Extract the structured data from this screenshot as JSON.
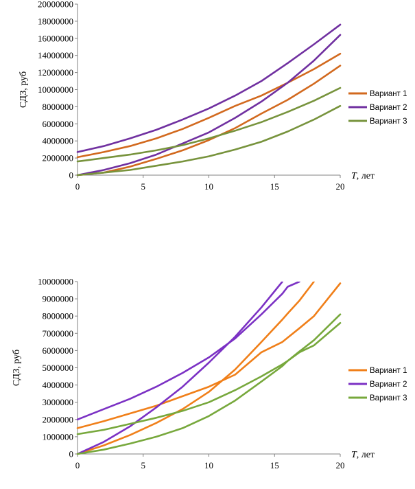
{
  "chart_data": [
    {
      "type": "line",
      "ylabel": "СДЗ, руб",
      "xlabel_italic": "T",
      "xlabel_rest": ", лет",
      "xlim": [
        0,
        20
      ],
      "ylim": [
        0,
        20000000
      ],
      "x_ticks": [
        "0",
        "5",
        "10",
        "15",
        "20"
      ],
      "y_ticks": [
        "0",
        "2000000",
        "4000000",
        "6000000",
        "8000000",
        "10000000",
        "12000000",
        "14000000",
        "16000000",
        "18000000",
        "20000000"
      ],
      "legend_position": "right",
      "legend": [
        "Вариант 1",
        "Вариант 2",
        "Вариант 3"
      ],
      "colors": [
        "#D2691E",
        "#7030A0",
        "#77933C"
      ],
      "x": [
        0,
        2,
        4,
        6,
        8,
        10,
        12,
        14,
        16,
        18,
        20
      ],
      "series": [
        {
          "name": "Вариант 1",
          "group": 0,
          "values": [
            2100000,
            2700000,
            3400000,
            4300000,
            5400000,
            6700000,
            8100000,
            9300000,
            10800000,
            12400000,
            14200000
          ]
        },
        {
          "name": "Вариант 1",
          "group": 0,
          "values": [
            0,
            300000,
            1000000,
            1900000,
            2900000,
            4100000,
            5500000,
            7200000,
            8800000,
            10700000,
            12800000
          ]
        },
        {
          "name": "Вариант 2",
          "group": 1,
          "values": [
            2700000,
            3400000,
            4300000,
            5300000,
            6500000,
            7800000,
            9300000,
            11000000,
            13100000,
            15300000,
            17600000
          ]
        },
        {
          "name": "Вариант 2",
          "group": 1,
          "values": [
            0,
            600000,
            1400000,
            2400000,
            3700000,
            5000000,
            6700000,
            8600000,
            10800000,
            13400000,
            16400000
          ]
        },
        {
          "name": "Вариант 3",
          "group": 2,
          "values": [
            1600000,
            2000000,
            2400000,
            2900000,
            3500000,
            4300000,
            5200000,
            6200000,
            7400000,
            8700000,
            10200000
          ]
        },
        {
          "name": "Вариант 3",
          "group": 2,
          "values": [
            0,
            300000,
            600000,
            1100000,
            1600000,
            2200000,
            3000000,
            3900000,
            5100000,
            6500000,
            8100000
          ]
        }
      ]
    },
    {
      "type": "line",
      "ylabel": "СДЗ, руб",
      "xlabel_italic": "T",
      "xlabel_rest": ", лет",
      "xlim": [
        0,
        20
      ],
      "ylim": [
        0,
        10000000
      ],
      "x_ticks": [
        "0",
        "5",
        "10",
        "15",
        "20"
      ],
      "y_ticks": [
        "0",
        "1000000",
        "2000000",
        "3000000",
        "4000000",
        "5000000",
        "6000000",
        "7000000",
        "8000000",
        "9000000",
        "10000000"
      ],
      "legend_position": "right",
      "legend": [
        "Вариант 1",
        "Вариант 2",
        "Вариант 3"
      ],
      "colors": [
        "#F07F19",
        "#7B31C4",
        "#77A83C"
      ],
      "x": [
        0,
        2,
        4,
        6,
        8,
        10,
        12,
        14,
        15.6,
        16,
        16.9,
        18,
        20
      ],
      "series": [
        {
          "name": "Вариант 1",
          "group": 0,
          "values": [
            1500000,
            1900000,
            2350000,
            2800000,
            3350000,
            3900000,
            4600000,
            5900000,
            6500000,
            6750000,
            7300000,
            8000000,
            9900000
          ]
        },
        {
          "name": "Вариант 1",
          "group": 0,
          "values": [
            0,
            500000,
            1100000,
            1800000,
            2600000,
            3600000,
            4900000,
            6500000,
            7800000,
            8150000,
            8900000,
            10000000,
            null
          ]
        },
        {
          "name": "Вариант 2",
          "group": 1,
          "values": [
            2000000,
            2600000,
            3200000,
            3900000,
            4700000,
            5600000,
            6700000,
            8100000,
            9300000,
            9700000,
            10000000,
            null,
            null
          ]
        },
        {
          "name": "Вариант 2",
          "group": 1,
          "values": [
            0,
            700000,
            1600000,
            2700000,
            3900000,
            5300000,
            6800000,
            8500000,
            10000000,
            null,
            null,
            null,
            null
          ]
        },
        {
          "name": "Вариант 3",
          "group": 2,
          "values": [
            1150000,
            1400000,
            1750000,
            2100000,
            2500000,
            3000000,
            3700000,
            4500000,
            5200000,
            5400000,
            5900000,
            6300000,
            7600000
          ]
        },
        {
          "name": "Вариант 3",
          "group": 2,
          "values": [
            0,
            250000,
            600000,
            1000000,
            1500000,
            2200000,
            3100000,
            4200000,
            5100000,
            5400000,
            5950000,
            6600000,
            8100000
          ]
        }
      ]
    }
  ]
}
